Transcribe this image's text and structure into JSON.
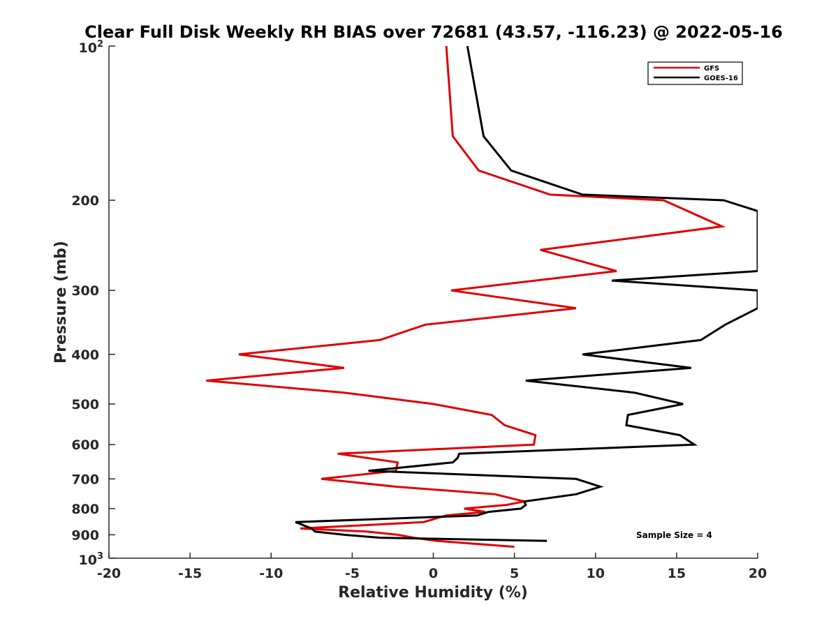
{
  "chart_data": {
    "type": "line",
    "title": "Clear Full Disk Weekly RH BIAS over 72681 (43.57, -116.23) @ 2022-05-16",
    "xlabel": "Relative Humidity (%)",
    "ylabel": "Pressure (mb)",
    "xlim": [
      -20,
      20
    ],
    "ylim": [
      100,
      1000
    ],
    "y_scale": "log",
    "y_reversed": true,
    "x_ticks": [
      "-20",
      "-15",
      "-10",
      "-5",
      "0",
      "5",
      "10",
      "15",
      "20"
    ],
    "y_tick_labels": {
      "top_base": "10",
      "top_exp": "2",
      "bottom_base": "10",
      "bottom_exp": "3",
      "mid": [
        "200",
        "300",
        "400",
        "500",
        "600",
        "700",
        "800",
        "900"
      ]
    },
    "legend_position": "top-right",
    "annotation": "Sample Size = 4",
    "colors": {
      "GFS": "#e00000",
      "GOES-16": "#000000"
    },
    "series": [
      {
        "name": "GFS",
        "points": [
          [
            0.8,
            100
          ],
          [
            1.2,
            150
          ],
          [
            2.8,
            175
          ],
          [
            7.2,
            195
          ],
          [
            14.2,
            200
          ],
          [
            17.8,
            225
          ],
          [
            6.6,
            250
          ],
          [
            11.3,
            275
          ],
          [
            1.1,
            300
          ],
          [
            8.8,
            325
          ],
          [
            -0.5,
            350
          ],
          [
            -3.3,
            375
          ],
          [
            -12.0,
            400
          ],
          [
            -5.5,
            425
          ],
          [
            -14.0,
            450
          ],
          [
            -5.5,
            475
          ],
          [
            0.0,
            500
          ],
          [
            3.6,
            525
          ],
          [
            4.4,
            550
          ],
          [
            6.3,
            575
          ],
          [
            6.2,
            600
          ],
          [
            -5.9,
            625
          ],
          [
            -2.2,
            650
          ],
          [
            -2.3,
            675
          ],
          [
            -6.9,
            700
          ],
          [
            -2.3,
            725
          ],
          [
            3.8,
            750
          ],
          [
            5.6,
            775
          ],
          [
            4.5,
            787
          ],
          [
            1.9,
            800
          ],
          [
            3.2,
            812
          ],
          [
            0.8,
            825
          ],
          [
            -0.6,
            850
          ],
          [
            -8.2,
            875
          ],
          [
            -4.1,
            887
          ],
          [
            -2.2,
            900
          ],
          [
            -1.2,
            912
          ],
          [
            0.2,
            925
          ],
          [
            5.0,
            950
          ]
        ]
      },
      {
        "name": "GOES-16",
        "points": [
          [
            2.1,
            100
          ],
          [
            3.1,
            150
          ],
          [
            4.8,
            175
          ],
          [
            9.2,
            195
          ],
          [
            17.9,
            200
          ],
          [
            20.0,
            210
          ],
          [
            20.0,
            275
          ],
          [
            11.0,
            287
          ],
          [
            20.0,
            300
          ],
          [
            20.0,
            325
          ],
          [
            18.0,
            350
          ],
          [
            16.5,
            375
          ],
          [
            9.2,
            400
          ],
          [
            15.9,
            425
          ],
          [
            5.7,
            450
          ],
          [
            12.4,
            475
          ],
          [
            15.4,
            500
          ],
          [
            12.0,
            525
          ],
          [
            11.9,
            550
          ],
          [
            15.2,
            575
          ],
          [
            16.1,
            600
          ],
          [
            1.6,
            625
          ],
          [
            1.5,
            637
          ],
          [
            1.2,
            650
          ],
          [
            -4.0,
            675
          ],
          [
            8.8,
            700
          ],
          [
            10.3,
            725
          ],
          [
            8.8,
            750
          ],
          [
            5.6,
            775
          ],
          [
            5.7,
            787
          ],
          [
            5.4,
            800
          ],
          [
            3.4,
            812
          ],
          [
            2.7,
            825
          ],
          [
            -8.5,
            850
          ],
          [
            -7.5,
            875
          ],
          [
            -7.3,
            887
          ],
          [
            -5.5,
            900
          ],
          [
            -3.3,
            912
          ],
          [
            7.0,
            925
          ]
        ]
      }
    ]
  }
}
